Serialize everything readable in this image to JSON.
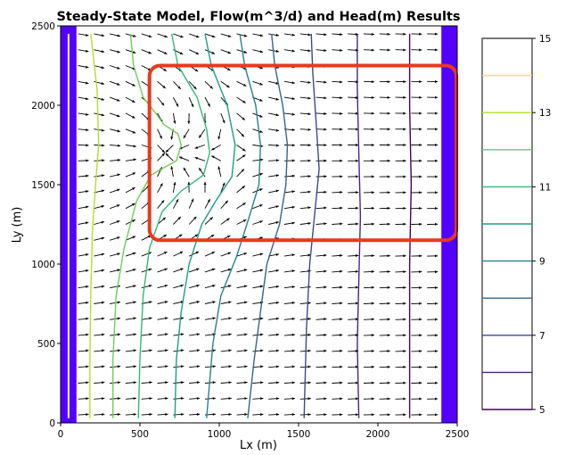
{
  "chart_data": {
    "type": "contour",
    "title": "Steady-State Model, Flow(m^3/d) and Head(m) Results",
    "xlabel": "Lx (m)",
    "ylabel": "Ly (m)",
    "xlim": [
      0,
      2500
    ],
    "ylim": [
      0,
      2500
    ],
    "xticks": [
      "0",
      "500",
      "1000",
      "1500",
      "2000",
      "2500"
    ],
    "yticks": [
      "0",
      "500",
      "1000",
      "1500",
      "2000",
      "2500"
    ],
    "colorbar": {
      "min": 5,
      "max": 15,
      "levels": [
        5,
        6,
        7,
        8,
        9,
        10,
        11,
        12,
        13,
        14,
        15
      ],
      "tick_labels": [
        "5",
        "7",
        "9",
        "11",
        "13",
        "15"
      ],
      "level_colors": [
        "#44015a",
        "#482878",
        "#3e4989",
        "#31688e",
        "#26828e",
        "#1f9e89",
        "#35b779",
        "#6ece58",
        "#b5de2b",
        "#fde725",
        "#4a4a4a"
      ]
    },
    "boundaries": {
      "left_constant_head": {
        "x_range": [
          0,
          100
        ],
        "color": "#5200ff"
      },
      "right_constant_head": {
        "x_range": [
          2400,
          2500
        ],
        "color": "#5200ff"
      }
    },
    "contours": [
      {
        "head": 14,
        "points": [
          [
            50,
            2450
          ],
          [
            50,
            1500
          ],
          [
            50,
            30
          ]
        ]
      },
      {
        "head": 13,
        "points": [
          [
            190,
            2450
          ],
          [
            230,
            2100
          ],
          [
            240,
            1750
          ],
          [
            220,
            1500
          ],
          [
            200,
            1200
          ],
          [
            190,
            800
          ],
          [
            185,
            400
          ],
          [
            185,
            30
          ]
        ]
      },
      {
        "head": 12,
        "points": [
          [
            440,
            2450
          ],
          [
            460,
            2250
          ],
          [
            520,
            2050
          ],
          [
            600,
            1950
          ],
          [
            650,
            1880
          ],
          [
            740,
            1820
          ],
          [
            760,
            1750
          ],
          [
            730,
            1650
          ],
          [
            620,
            1590
          ],
          [
            570,
            1560
          ],
          [
            480,
            1400
          ],
          [
            400,
            1100
          ],
          [
            350,
            800
          ],
          [
            330,
            400
          ],
          [
            330,
            30
          ]
        ]
      },
      {
        "head": 11,
        "points": [
          [
            700,
            2450
          ],
          [
            740,
            2250
          ],
          [
            860,
            2050
          ],
          [
            920,
            1850
          ],
          [
            940,
            1700
          ],
          [
            900,
            1560
          ],
          [
            760,
            1460
          ],
          [
            640,
            1330
          ],
          [
            560,
            1100
          ],
          [
            520,
            800
          ],
          [
            500,
            400
          ],
          [
            490,
            30
          ]
        ]
      },
      {
        "head": 10,
        "points": [
          [
            910,
            2450
          ],
          [
            950,
            2250
          ],
          [
            1050,
            2000
          ],
          [
            1100,
            1750
          ],
          [
            1080,
            1550
          ],
          [
            980,
            1400
          ],
          [
            890,
            1250
          ],
          [
            810,
            1000
          ],
          [
            760,
            700
          ],
          [
            730,
            400
          ],
          [
            720,
            30
          ]
        ]
      },
      {
        "head": 9,
        "points": [
          [
            1130,
            2450
          ],
          [
            1160,
            2250
          ],
          [
            1230,
            2000
          ],
          [
            1260,
            1750
          ],
          [
            1250,
            1500
          ],
          [
            1190,
            1300
          ],
          [
            1110,
            1050
          ],
          [
            1010,
            800
          ],
          [
            960,
            500
          ],
          [
            920,
            30
          ]
        ]
      },
      {
        "head": 8,
        "points": [
          [
            1330,
            2450
          ],
          [
            1350,
            2250
          ],
          [
            1400,
            2000
          ],
          [
            1430,
            1750
          ],
          [
            1420,
            1500
          ],
          [
            1380,
            1250
          ],
          [
            1300,
            1000
          ],
          [
            1260,
            700
          ],
          [
            1220,
            400
          ],
          [
            1180,
            30
          ]
        ]
      },
      {
        "head": 7,
        "points": [
          [
            1580,
            2450
          ],
          [
            1590,
            2200
          ],
          [
            1610,
            1900
          ],
          [
            1630,
            1600
          ],
          [
            1600,
            1300
          ],
          [
            1570,
            1000
          ],
          [
            1550,
            600
          ],
          [
            1535,
            30
          ]
        ]
      },
      {
        "head": 6,
        "points": [
          [
            1870,
            2450
          ],
          [
            1870,
            2100
          ],
          [
            1880,
            1700
          ],
          [
            1890,
            1300
          ],
          [
            1880,
            900
          ],
          [
            1870,
            500
          ],
          [
            1880,
            30
          ]
        ]
      },
      {
        "head": 5,
        "points": [
          [
            2200,
            2450
          ],
          [
            2200,
            2000
          ],
          [
            2210,
            1500
          ],
          [
            2200,
            1000
          ],
          [
            2200,
            500
          ],
          [
            2200,
            30
          ]
        ]
      }
    ],
    "well": {
      "x": 650,
      "y": 1700
    },
    "highlight_box": {
      "x0": 560,
      "x1": 2495,
      "y0": 1150,
      "y1": 2250,
      "color": "#e8391e"
    }
  }
}
